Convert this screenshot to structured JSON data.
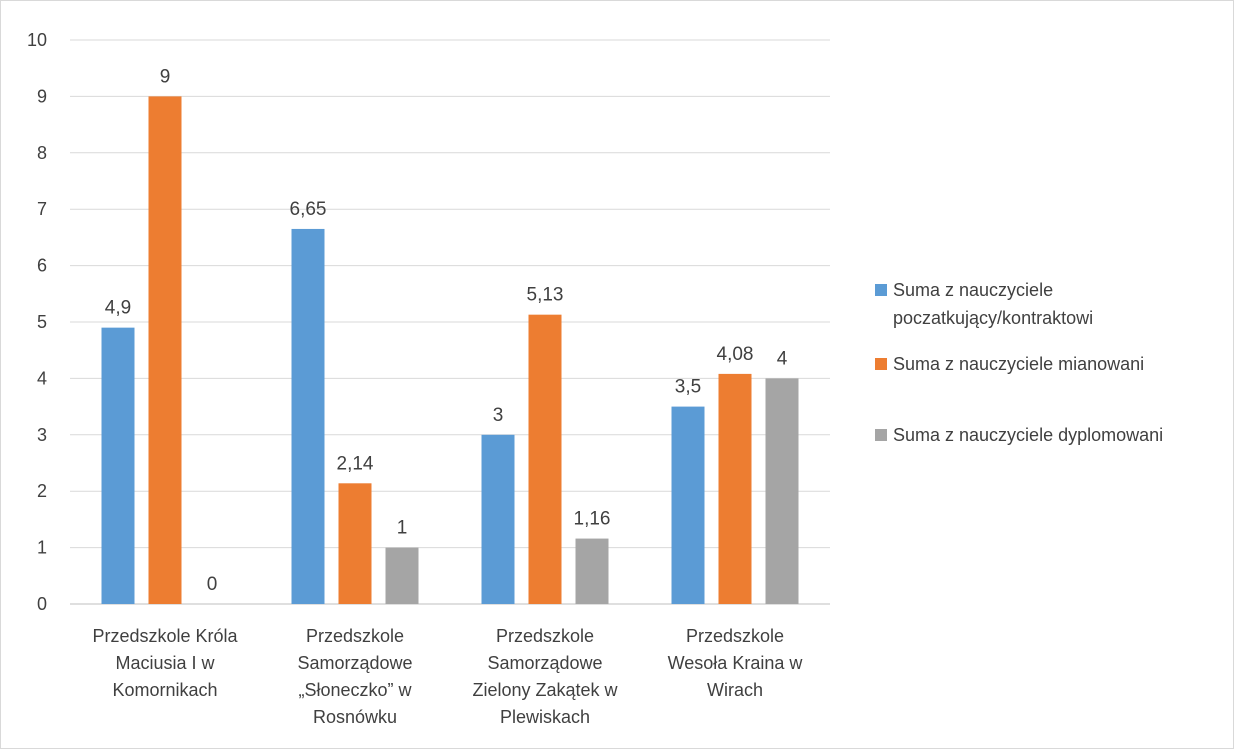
{
  "chart_data": {
    "type": "bar",
    "categories": [
      [
        "Przedszkole Króla",
        "Maciusia I w",
        "Komornikach"
      ],
      [
        "Przedszkole",
        "Samorządowe",
        "„Słoneczko” w",
        "Rosnówku"
      ],
      [
        "Przedszkole",
        "Samorządowe",
        "Zielony Zakątek w",
        "Plewiskach"
      ],
      [
        "Przedszkole",
        "Wesoła Kraina w",
        "Wirach"
      ]
    ],
    "series": [
      {
        "name": "Suma z nauczyciele poczatkujący/kontraktowi",
        "legend_lines": [
          "Suma z nauczyciele",
          "poczatkujący/kontraktowi"
        ],
        "color": "#5b9bd5",
        "values": [
          4.9,
          6.65,
          3,
          3.5
        ],
        "labels": [
          "4,9",
          "6,65",
          "3",
          "3,5"
        ]
      },
      {
        "name": "Suma z nauczyciele mianowani",
        "legend_lines": [
          "Suma z nauczyciele mianowani"
        ],
        "color": "#ed7d31",
        "values": [
          9,
          2.14,
          5.13,
          4.08
        ],
        "labels": [
          "9",
          "2,14",
          "5,13",
          "4,08"
        ]
      },
      {
        "name": "Suma z nauczyciele dyplomowani",
        "legend_lines": [
          "Suma z nauczyciele dyplomowani"
        ],
        "color": "#a5a5a5",
        "values": [
          0,
          1,
          1.16,
          4
        ],
        "labels": [
          "0",
          "1",
          "1,16",
          "4"
        ]
      }
    ],
    "yticks": [
      "0",
      "1",
      "2",
      "3",
      "4",
      "5",
      "6",
      "7",
      "8",
      "9",
      "10"
    ],
    "ylim": [
      0,
      10
    ],
    "grid": true,
    "legend": "right",
    "title": "",
    "xlabel": "",
    "ylabel": ""
  }
}
